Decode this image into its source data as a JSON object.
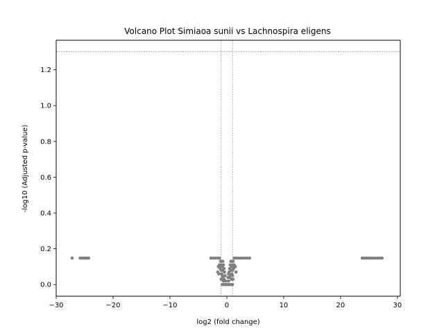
{
  "chart_data": {
    "type": "scatter",
    "title": "Volcano Plot Simiaoa sunii vs Lachnospira eligens",
    "xlabel": "log2 (fold change)",
    "ylabel": "-log10 (Adjusted p-value)",
    "xlim": [
      -30,
      30.5
    ],
    "ylim": [
      -0.065,
      1.365
    ],
    "x_ticks": [
      -30,
      -20,
      -10,
      0,
      10,
      20,
      30
    ],
    "x_tick_labels": [
      "−30",
      "−20",
      "−10",
      "0",
      "10",
      "20",
      "30"
    ],
    "y_ticks": [
      0.0,
      0.2,
      0.4,
      0.6,
      0.8,
      1.0,
      1.2
    ],
    "y_tick_labels": [
      "0.0",
      "0.2",
      "0.4",
      "0.6",
      "0.8",
      "1.0",
      "1.2"
    ],
    "thresholds": {
      "x_lines": [
        -1,
        1
      ],
      "y_line": 1.301
    },
    "point_color": "#808080",
    "threshold_color": "#808080",
    "grid": false,
    "series": [
      {
        "points": [
          [
            -27.2,
            0.148
          ],
          [
            -25.8,
            0.148
          ],
          [
            -25.5,
            0.148
          ],
          [
            -25.2,
            0.148
          ],
          [
            -24.9,
            0.148
          ],
          [
            -24.6,
            0.148
          ],
          [
            -24.3,
            0.148
          ],
          [
            -2.8,
            0.148
          ],
          [
            -2.4,
            0.148
          ],
          [
            -2.0,
            0.148
          ],
          [
            -1.6,
            0.148
          ],
          [
            -1.3,
            0.148
          ],
          [
            1.3,
            0.148
          ],
          [
            1.6,
            0.148
          ],
          [
            2.0,
            0.148
          ],
          [
            2.4,
            0.148
          ],
          [
            2.8,
            0.148
          ],
          [
            3.2,
            0.148
          ],
          [
            3.6,
            0.148
          ],
          [
            4.0,
            0.148
          ],
          [
            -1.1,
            0.13
          ],
          [
            -0.9,
            0.13
          ],
          [
            -0.7,
            0.13
          ],
          [
            0.7,
            0.13
          ],
          [
            0.9,
            0.13
          ],
          [
            1.1,
            0.13
          ],
          [
            -1.3,
            0.11
          ],
          [
            -1.0,
            0.11
          ],
          [
            -0.6,
            0.11
          ],
          [
            0.6,
            0.11
          ],
          [
            1.0,
            0.11
          ],
          [
            1.3,
            0.11
          ],
          [
            -1.5,
            0.1
          ],
          [
            -1.2,
            0.1
          ],
          [
            -0.8,
            0.1
          ],
          [
            0.8,
            0.1
          ],
          [
            1.2,
            0.1
          ],
          [
            1.5,
            0.1
          ],
          [
            -1.2,
            0.09
          ],
          [
            -0.5,
            0.09
          ],
          [
            0.5,
            0.09
          ],
          [
            1.2,
            0.09
          ],
          [
            -1.0,
            0.08
          ],
          [
            -0.7,
            0.08
          ],
          [
            0.7,
            0.08
          ],
          [
            1.0,
            0.08
          ],
          [
            -1.6,
            0.07
          ],
          [
            -0.4,
            0.07
          ],
          [
            0.4,
            0.07
          ],
          [
            1.6,
            0.07
          ],
          [
            -1.4,
            0.06
          ],
          [
            -0.9,
            0.06
          ],
          [
            0.3,
            0.06
          ],
          [
            0.9,
            0.06
          ],
          [
            -0.8,
            0.05
          ],
          [
            -0.3,
            0.05
          ],
          [
            0.6,
            0.05
          ],
          [
            1.0,
            0.05
          ],
          [
            -0.7,
            0.04
          ],
          [
            0.2,
            0.04
          ],
          [
            0.5,
            0.04
          ],
          [
            -1.0,
            0.03
          ],
          [
            -0.5,
            0.03
          ],
          [
            0.8,
            0.03
          ],
          [
            1.1,
            0.03
          ],
          [
            -0.6,
            0.02
          ],
          [
            -0.2,
            0.02
          ],
          [
            0.3,
            0.02
          ],
          [
            -0.8,
            0.0
          ],
          [
            -0.5,
            0.0
          ],
          [
            -0.2,
            0.0
          ],
          [
            0.1,
            0.0
          ],
          [
            0.4,
            0.0
          ],
          [
            0.7,
            0.0
          ],
          [
            1.0,
            0.0
          ],
          [
            23.8,
            0.148
          ],
          [
            24.2,
            0.148
          ],
          [
            24.6,
            0.148
          ],
          [
            25.0,
            0.148
          ],
          [
            25.4,
            0.148
          ],
          [
            25.8,
            0.148
          ],
          [
            26.2,
            0.148
          ],
          [
            26.6,
            0.148
          ],
          [
            27.0,
            0.148
          ],
          [
            27.3,
            0.148
          ]
        ]
      }
    ]
  }
}
